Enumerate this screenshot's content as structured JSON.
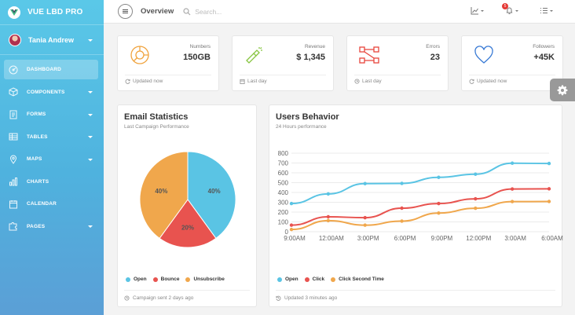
{
  "app": {
    "brand": "VUE LBD PRO"
  },
  "user": {
    "name": "Tania Andrew"
  },
  "sidebar": {
    "items": [
      {
        "label": "DASHBOARD",
        "icon": "dashboard-icon",
        "active": true
      },
      {
        "label": "COMPONENTS",
        "icon": "cube-icon",
        "caret": true
      },
      {
        "label": "FORMS",
        "icon": "forms-icon",
        "caret": true
      },
      {
        "label": "TABLES",
        "icon": "table-icon",
        "caret": true
      },
      {
        "label": "MAPS",
        "icon": "map-pin-icon",
        "caret": true
      },
      {
        "label": "CHARTS",
        "icon": "chart-icon"
      },
      {
        "label": "CALENDAR",
        "icon": "calendar-icon"
      },
      {
        "label": "PAGES",
        "icon": "puzzle-icon",
        "caret": true
      }
    ]
  },
  "topbar": {
    "title": "Overview",
    "search_placeholder": "Search...",
    "notification_count": "5"
  },
  "stats": [
    {
      "label": "Numbers",
      "value": "150GB",
      "footer": "Updated now",
      "icon": "chart-pie-icon",
      "color": "#f0a33d"
    },
    {
      "label": "Revenue",
      "value": "$ 1,345",
      "footer": "Last day",
      "icon": "flashlight-icon",
      "color": "#87c540"
    },
    {
      "label": "Errors",
      "value": "23",
      "footer": "Last day",
      "icon": "network-icon",
      "color": "#e8453c"
    },
    {
      "label": "Followers",
      "value": "+45K",
      "footer": "Updated now",
      "icon": "heart-icon",
      "color": "#3a7bd5"
    }
  ],
  "email": {
    "title": "Email Statistics",
    "subtitle": "Last Campaign Performance",
    "footer": "Campaign sent 2 days ago",
    "chart_data": {
      "type": "pie",
      "series": [
        {
          "name": "Open",
          "value": 40,
          "label": "40%",
          "color": "#5ac4e4"
        },
        {
          "name": "Bounce",
          "value": 20,
          "label": "20%",
          "color": "#e8534f"
        },
        {
          "name": "Unsubscribe",
          "value": 40,
          "label": "40%",
          "color": "#f0a74c"
        }
      ]
    }
  },
  "users": {
    "title": "Users Behavior",
    "subtitle": "24 Hours performance",
    "footer": "Updated 3 minutes ago",
    "chart_data": {
      "type": "line",
      "categories": [
        "9:00AM",
        "12:00AM",
        "3:00PM",
        "6:00PM",
        "9:00PM",
        "12:00PM",
        "3:00AM",
        "6:00AM"
      ],
      "ylim": [
        0,
        800
      ],
      "yticks": [
        0,
        100,
        200,
        300,
        400,
        500,
        600,
        700,
        800
      ],
      "grid": true,
      "legend_position": "bottom-left",
      "series": [
        {
          "name": "Open",
          "color": "#5ac4e4",
          "values": [
            287,
            385,
            490,
            492,
            554,
            586,
            698,
            695
          ]
        },
        {
          "name": "Click",
          "color": "#e8534f",
          "values": [
            67,
            152,
            143,
            240,
            287,
            335,
            435,
            437
          ]
        },
        {
          "name": "Click Second Time",
          "color": "#f0a74c",
          "values": [
            23,
            113,
            67,
            108,
            190,
            239,
            307,
            308
          ]
        }
      ]
    }
  }
}
